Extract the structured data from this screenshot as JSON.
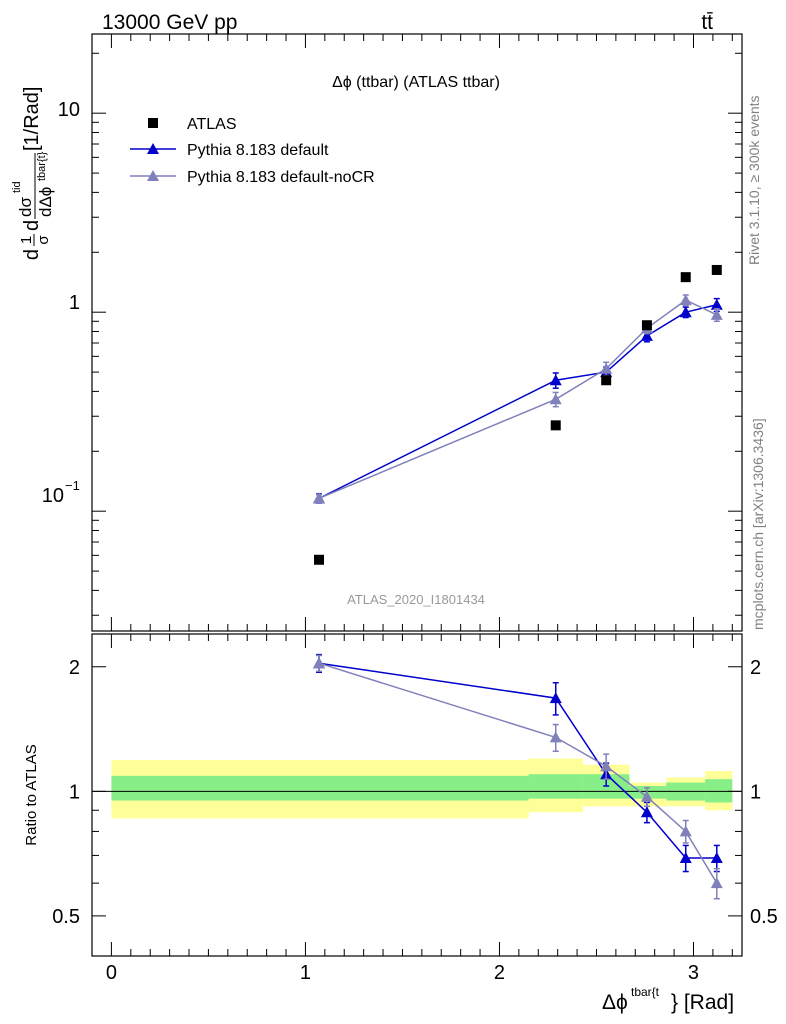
{
  "header": {
    "energy_label": "13000 GeV pp",
    "process_label": "tt̄"
  },
  "side_labels": {
    "rivet": "Rivet 3.1.10, ≥ 300k events",
    "mcplots": "mcplots.cern.ch [arXiv:1306.3436]"
  },
  "colors": {
    "atlas": "#000000",
    "pythia_default": "#0000cc",
    "pythia_nocr": "#8080bb",
    "band_inner": "#88ee88",
    "band_outer": "#ffff99"
  },
  "chart_data": [
    {
      "type": "scatter",
      "name": "main",
      "title": "Δϕ (ttbar) (ATLAS ttbar)",
      "watermark": "ATLAS_2020_I1801434",
      "ylabel": "dσ/dΔϕ [1/Rad]",
      "ylabel_parts": {
        "d": "d",
        "one": "1",
        "sigma": "σ",
        "numer": "dσ",
        "numer_sup": "tid",
        "denom": "dΔϕ",
        "denom_sup": "tbar{t}",
        "unit": "[1/Rad]"
      },
      "yscale": "log",
      "ylim": [
        0.025,
        25
      ],
      "xlim": [
        -0.1,
        3.25
      ],
      "ytick_labels": {
        "major_1": "1",
        "major_10": "10",
        "minor_base": "10",
        "minor_exp": "−1"
      },
      "legend_position": "top-left",
      "series": [
        {
          "name": "ATLAS",
          "marker": "square",
          "x": [
            1.07,
            2.29,
            2.55,
            2.76,
            2.96,
            3.12
          ],
          "y": [
            0.057,
            0.27,
            0.455,
            0.86,
            1.5,
            1.63
          ]
        },
        {
          "name": "Pythia 8.183 default",
          "marker": "triangle",
          "x": [
            1.07,
            2.29,
            2.55,
            2.76,
            2.96,
            3.12
          ],
          "y": [
            0.116,
            0.455,
            0.5,
            0.76,
            1.0,
            1.09
          ],
          "yerr": [
            0.006,
            0.04,
            0.03,
            0.05,
            0.06,
            0.08
          ]
        },
        {
          "name": "Pythia 8.183 default-noCR",
          "marker": "triangle",
          "x": [
            1.07,
            2.29,
            2.55,
            2.76,
            2.96,
            3.12
          ],
          "y": [
            0.116,
            0.365,
            0.52,
            0.83,
            1.15,
            0.97
          ],
          "yerr": [
            0.005,
            0.03,
            0.04,
            0.05,
            0.07,
            0.07
          ]
        }
      ]
    },
    {
      "type": "line",
      "name": "ratio",
      "ylabel": "Ratio to ATLAS",
      "xlabel": "Δϕ^{tbar{t}} [Rad]",
      "xlabel_parts": {
        "symbol": "Δϕ",
        "sup": "tbar{t",
        "rest": "} [Rad]"
      },
      "yscale": "log",
      "ylim": [
        0.4,
        2.4
      ],
      "xlim": [
        -0.1,
        3.25
      ],
      "xticks": [
        0,
        1,
        2,
        3
      ],
      "xtick_labels": [
        "0",
        "1",
        "2",
        "3"
      ],
      "yticks": [
        0.5,
        1,
        2
      ],
      "ytick_labels": [
        "0.5",
        "1",
        "2"
      ],
      "bands": {
        "edges": [
          0,
          2.15,
          2.43,
          2.67,
          2.86,
          3.06,
          3.2
        ],
        "inner_low": [
          0.95,
          0.96,
          0.96,
          0.96,
          0.95,
          0.94
        ],
        "inner_high": [
          1.09,
          1.1,
          1.1,
          1.03,
          1.05,
          1.07
        ],
        "outer_low": [
          0.86,
          0.89,
          0.92,
          0.92,
          0.92,
          0.9
        ],
        "outer_high": [
          1.19,
          1.2,
          1.16,
          1.05,
          1.08,
          1.12
        ]
      },
      "series": [
        {
          "name": "Pythia 8.183 default",
          "x": [
            1.07,
            2.29,
            2.55,
            2.76,
            2.96,
            3.12
          ],
          "y": [
            2.04,
            1.68,
            1.1,
            0.89,
            0.69,
            0.69
          ],
          "yerr": [
            0.1,
            0.15,
            0.07,
            0.05,
            0.05,
            0.05
          ]
        },
        {
          "name": "Pythia 8.183 default-noCR",
          "x": [
            1.07,
            2.29,
            2.55,
            2.76,
            2.96,
            3.12
          ],
          "y": [
            2.04,
            1.35,
            1.15,
            0.97,
            0.8,
            0.6
          ],
          "yerr": [
            0.09,
            0.1,
            0.08,
            0.05,
            0.05,
            0.05
          ]
        }
      ]
    }
  ]
}
